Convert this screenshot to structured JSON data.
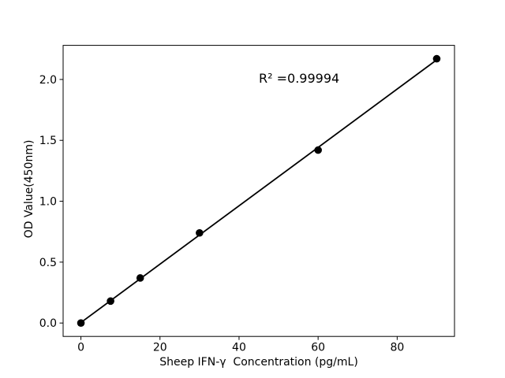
{
  "figure": {
    "background": "#ffffff",
    "foreground": "#000000"
  },
  "chart_data": {
    "type": "scatter",
    "title": "",
    "xlabel": "Sheep IFN-γ  Concentration (pg/mL)",
    "ylabel": "OD Value(450nm)",
    "x": [
      0,
      7.5,
      15,
      30,
      60,
      90
    ],
    "y": [
      0.0,
      0.18,
      0.37,
      0.74,
      1.42,
      2.17
    ],
    "fit_line": {
      "x": [
        0,
        90
      ],
      "y": [
        0.004,
        2.161
      ]
    },
    "annotation": {
      "text": "R² =0.99994"
    },
    "x_ticks": {
      "values": [
        0,
        20,
        40,
        60,
        80
      ],
      "labels": [
        "0",
        "20",
        "40",
        "60",
        "80"
      ]
    },
    "y_ticks": {
      "values": [
        0.0,
        0.5,
        1.0,
        1.5,
        2.0
      ],
      "labels": [
        "0.0",
        "0.5",
        "1.0",
        "1.5",
        "2.0"
      ]
    },
    "xlim": [
      -4.5,
      94.5
    ],
    "ylim": [
      -0.11,
      2.28
    ],
    "grid": false,
    "legend": "none",
    "marker_color": "#000000",
    "line_color": "#000000"
  }
}
